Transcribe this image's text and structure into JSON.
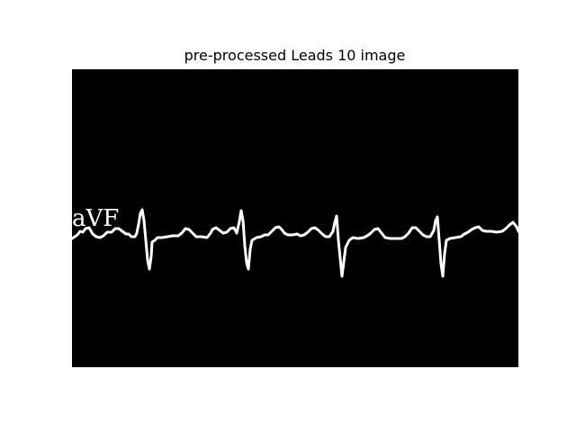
{
  "title": "pre-processed Leads 10 image",
  "lead_label": "aVF",
  "colors": {
    "background": "#000000",
    "trace": "#ffffff",
    "page": "#ffffff"
  }
}
